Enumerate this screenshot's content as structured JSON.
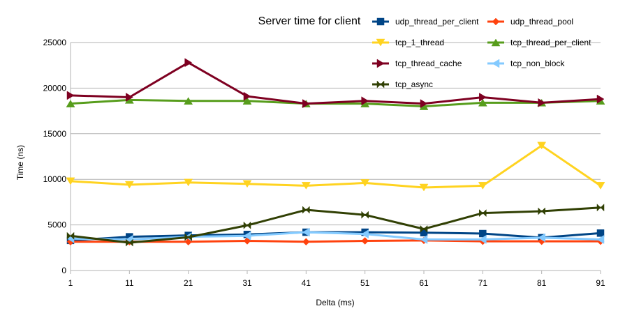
{
  "chart_data": {
    "type": "line",
    "title": "Server time for client",
    "xlabel": "Delta (ms)",
    "ylabel": "Time (ns)",
    "x": [
      1,
      11,
      21,
      31,
      41,
      51,
      61,
      71,
      81,
      91
    ],
    "ylim": [
      0,
      25000
    ],
    "yticks": [
      0,
      5000,
      10000,
      15000,
      20000,
      25000
    ],
    "grid": "horizontal",
    "legend_position": "top-right",
    "series": [
      {
        "name": "udp_thread_per_client",
        "color": "#004586",
        "marker": "square",
        "values": [
          3300,
          3700,
          3850,
          3950,
          4200,
          4200,
          4150,
          4050,
          3600,
          4100
        ]
      },
      {
        "name": "udp_thread_pool",
        "color": "#ff420e",
        "marker": "diamond",
        "values": [
          3150,
          3150,
          3150,
          3250,
          3150,
          3250,
          3300,
          3200,
          3200,
          3200
        ]
      },
      {
        "name": "tcp_1_thread",
        "color": "#ffd320",
        "marker": "triangle-down",
        "values": [
          9800,
          9400,
          9650,
          9500,
          9300,
          9600,
          9100,
          9300,
          13700,
          9300
        ]
      },
      {
        "name": "tcp_thread_per_client",
        "color": "#579d1c",
        "marker": "triangle-up",
        "values": [
          18300,
          18700,
          18600,
          18600,
          18300,
          18300,
          18000,
          18400,
          18400,
          18600
        ]
      },
      {
        "name": "tcp_thread_cache",
        "color": "#7e0021",
        "marker": "triangle-right",
        "values": [
          19200,
          19000,
          22800,
          19100,
          18300,
          18600,
          18300,
          19000,
          18400,
          18800
        ]
      },
      {
        "name": "tcp_non_block",
        "color": "#83caff",
        "marker": "triangle-left",
        "values": [
          3500,
          3400,
          3700,
          3800,
          4200,
          4000,
          3400,
          3400,
          3600,
          3400
        ]
      },
      {
        "name": "tcp_async",
        "color": "#314004",
        "marker": "bowtie",
        "values": [
          3800,
          3050,
          3650,
          4950,
          6650,
          6100,
          4550,
          6300,
          6500,
          6900
        ]
      }
    ]
  }
}
